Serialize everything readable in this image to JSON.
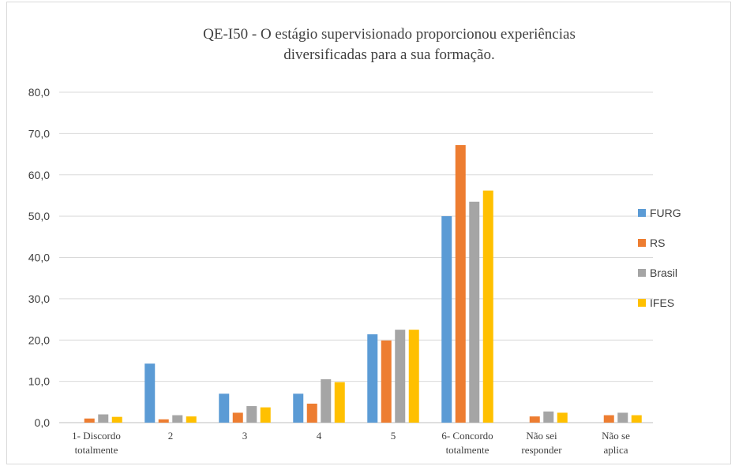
{
  "chart_data": {
    "type": "bar",
    "title": [
      "QE-I50 - O estágio supervisionado proporcionou experiências",
      "diversificadas para a sua formação."
    ],
    "categories": [
      [
        "1- Discordo",
        "totalmente"
      ],
      [
        "2"
      ],
      [
        "3"
      ],
      [
        "4"
      ],
      [
        "5"
      ],
      [
        "6- Concordo",
        "totalmente"
      ],
      [
        "Não sei",
        "responder"
      ],
      [
        "Não se",
        "aplica"
      ]
    ],
    "series": [
      {
        "name": "FURG",
        "color": "#5b9bd5",
        "values": [
          0.0,
          14.3,
          7.0,
          7.0,
          21.4,
          50.0,
          0.0,
          0.0
        ]
      },
      {
        "name": "RS",
        "color": "#ed7d31",
        "values": [
          1.0,
          0.8,
          2.4,
          4.6,
          19.9,
          67.2,
          1.5,
          1.8
        ]
      },
      {
        "name": "Brasil",
        "color": "#a5a5a5",
        "values": [
          2.0,
          1.8,
          4.0,
          10.5,
          22.5,
          53.5,
          2.7,
          2.4
        ]
      },
      {
        "name": "IFES",
        "color": "#ffc000",
        "values": [
          1.4,
          1.5,
          3.7,
          9.8,
          22.5,
          56.2,
          2.4,
          1.8
        ]
      }
    ],
    "yticks": [
      "0,0",
      "10,0",
      "20,0",
      "30,0",
      "40,0",
      "50,0",
      "60,0",
      "70,0",
      "80,0"
    ],
    "ylim": [
      0,
      80
    ],
    "grid": true,
    "legend_position": "right"
  }
}
